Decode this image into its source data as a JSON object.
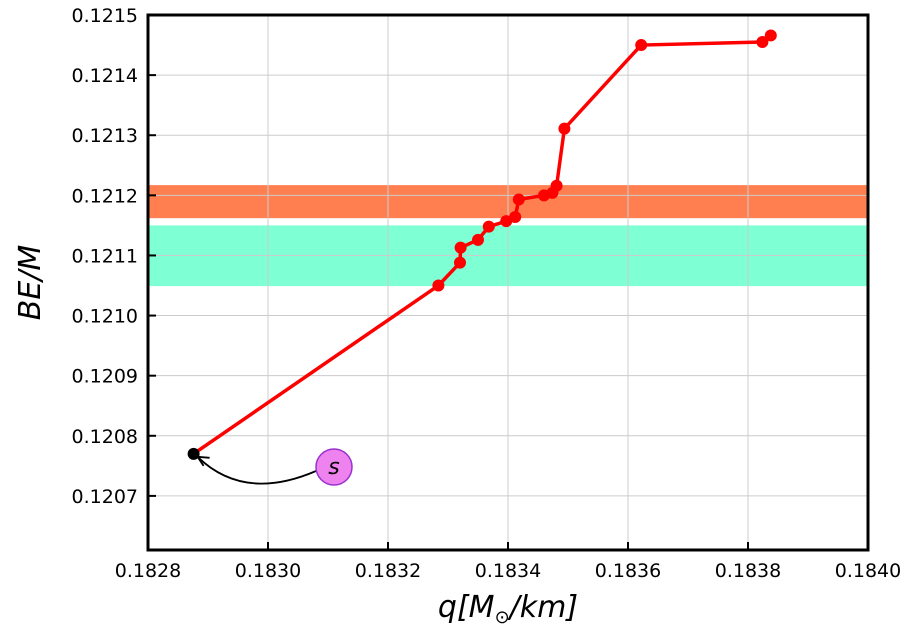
{
  "chart_data": {
    "type": "line",
    "xlabel_parts": [
      "q[M",
      "⊙",
      "/km]"
    ],
    "ylabel": "BE/M",
    "xlim": [
      0.1828,
      0.184
    ],
    "ylim": [
      0.12061,
      0.1215
    ],
    "x_ticks": [
      0.1828,
      0.183,
      0.1832,
      0.1834,
      0.1836,
      0.1838,
      0.184
    ],
    "x_tick_labels": [
      "0.1828",
      "0.1830",
      "0.1832",
      "0.1834",
      "0.1836",
      "0.1838",
      "0.1840"
    ],
    "y_ticks": [
      0.1207,
      0.1208,
      0.1209,
      0.121,
      0.1211,
      0.1212,
      0.1213,
      0.1214,
      0.1215
    ],
    "y_tick_labels": [
      "0.1207",
      "0.1208",
      "0.1209",
      "0.1210",
      "0.1211",
      "0.1212",
      "0.1213",
      "0.1214",
      "0.1215"
    ],
    "grid": true,
    "bands": [
      {
        "y": [
          0.121162,
          0.121217
        ],
        "color": "#ff7f50"
      },
      {
        "y": [
          0.121049,
          0.12115
        ],
        "color": "#7fffd4"
      }
    ],
    "series": [
      {
        "color": "#ff0000",
        "x": [
          0.183279,
          0.183284,
          0.18332,
          0.183321,
          0.18335,
          0.183368,
          0.183397,
          0.183412,
          0.183418,
          0.18346,
          0.183474,
          0.183481,
          0.183494,
          0.183622,
          0.183824,
          0.183838
        ],
        "y": [
          0.12077,
          0.12105,
          0.121088,
          0.121113,
          0.121126,
          0.121148,
          0.121157,
          0.121164,
          0.121193,
          0.1212,
          0.121204,
          0.121216,
          0.121311,
          0.12145,
          0.121455,
          0.121466
        ],
        "start_point": {
          "x": 0.182876,
          "y": 0.12077,
          "color": "#000000"
        }
      }
    ],
    "annotation": {
      "text": "s",
      "target": {
        "x": 0.182876,
        "y": 0.12077
      },
      "label_at": {
        "x": 0.18311,
        "y": 0.121742
      },
      "fill": "#ee82ee",
      "edge": "#9932cc"
    }
  }
}
